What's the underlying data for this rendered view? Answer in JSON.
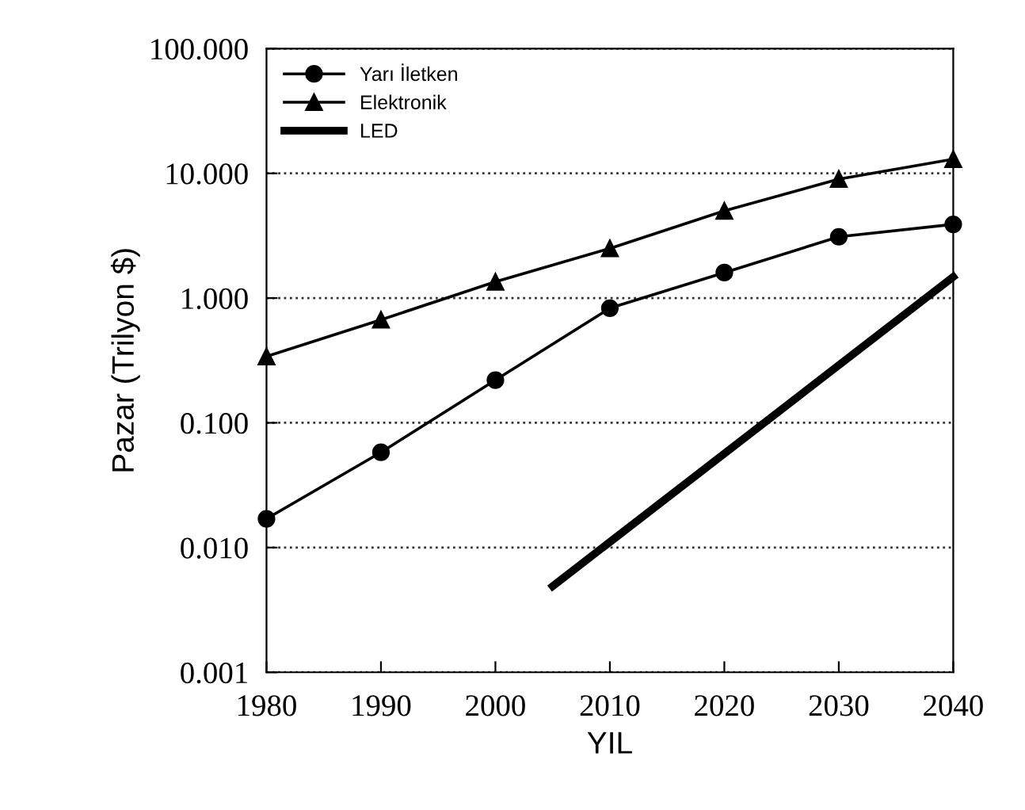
{
  "chart_data": {
    "type": "line",
    "xlabel": "YIL",
    "ylabel": "Pazar (Trilyon $)",
    "log": "y",
    "grid": "y",
    "legend": "top left",
    "xlim": [
      1980,
      2040
    ],
    "xticks": [
      1980,
      1990,
      2000,
      2010,
      2020,
      2030,
      2040
    ],
    "ylim": [
      0.001,
      100
    ],
    "yticks": [
      {
        "value": 0.001,
        "label": "0.001"
      },
      {
        "value": 0.01,
        "label": "0.010"
      },
      {
        "value": 0.1,
        "label": "0.100"
      },
      {
        "value": 1,
        "label": "1.000"
      },
      {
        "value": 10,
        "label": "10.000"
      },
      {
        "value": 100,
        "label": "100.000"
      }
    ],
    "series": [
      {
        "name": "Yarı İletken",
        "color": "#000000",
        "marker": "circle",
        "x": [
          1980,
          1990,
          2000,
          2010,
          2020,
          2030,
          2040
        ],
        "values": [
          0.017,
          0.058,
          0.22,
          0.83,
          1.6,
          3.1,
          3.9
        ]
      },
      {
        "name": "Elektronik",
        "color": "#000000",
        "marker": "triangle",
        "x": [
          1980,
          1990,
          2000,
          2010,
          2020,
          2030,
          2040
        ],
        "values": [
          0.34,
          0.67,
          1.35,
          2.5,
          5.0,
          9,
          13
        ]
      },
      {
        "name": "LED",
        "color": "#000000",
        "marker": "none",
        "x": [
          2005,
          2040
        ],
        "values": [
          0.0049,
          1.48
        ]
      }
    ]
  }
}
